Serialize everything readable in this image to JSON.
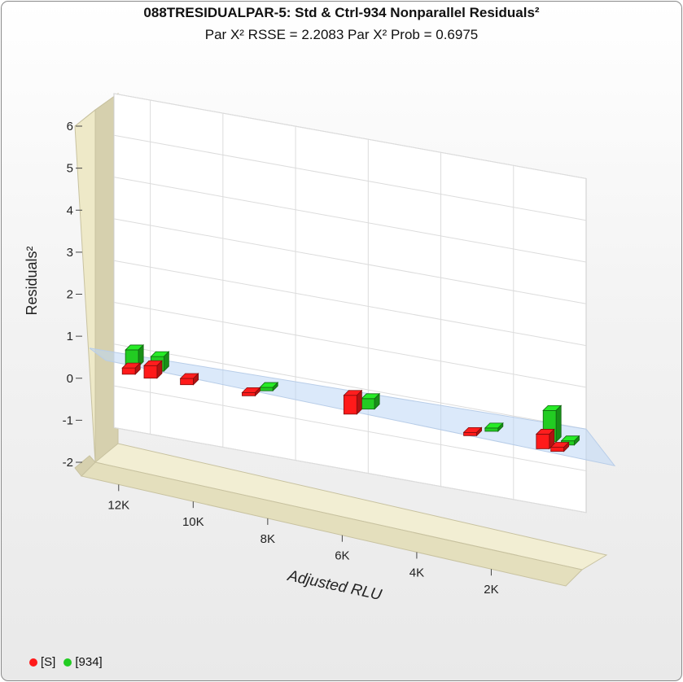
{
  "title": "088TRESIDUALPAR-5:  Std & Ctrl-934  Nonparallel Residuals²",
  "subtitle": "Par X² RSSE = 2.2083 Par X² Prob = 0.6975",
  "colors": {
    "S": "#ff1a1a",
    "934": "#22cc22"
  },
  "chart_data": {
    "type": "bar",
    "variant": "3d",
    "title": "088TRESIDUALPAR-5:  Std & Ctrl-934  Nonparallel Residuals²",
    "subtitle": "Par X² RSSE = 2.2083 Par X² Prob = 0.6975",
    "xlabel": "Adjusted RLU",
    "ylabel": "Residuals²",
    "xlim": [
      0,
      13000
    ],
    "ylim": [
      -2,
      6
    ],
    "x_ticks": [
      12000,
      10000,
      8000,
      6000,
      4000,
      2000
    ],
    "x_tick_labels": [
      "12K",
      "10K",
      "8K",
      "6K",
      "4K",
      "2K"
    ],
    "y_ticks": [
      -2,
      -1,
      0,
      1,
      2,
      3,
      4,
      5,
      6
    ],
    "y_tick_labels": [
      "-2",
      "-1",
      "0",
      "1",
      "2",
      "3",
      "4",
      "5",
      "6"
    ],
    "legend_position": "bottom-left",
    "series": [
      {
        "name": "[S]",
        "x": [
          12900,
          12300,
          11300,
          9600,
          6800,
          3500,
          1500,
          1100
        ],
        "y": [
          0.15,
          0.3,
          0.15,
          0.05,
          0.45,
          0.05,
          0.35,
          0.1
        ]
      },
      {
        "name": "[934]",
        "x": [
          12700,
          12000,
          9000,
          6200,
          2800,
          1200,
          700
        ],
        "y": [
          0.4,
          0.35,
          0.08,
          0.25,
          0.08,
          0.75,
          0.1
        ]
      }
    ]
  }
}
